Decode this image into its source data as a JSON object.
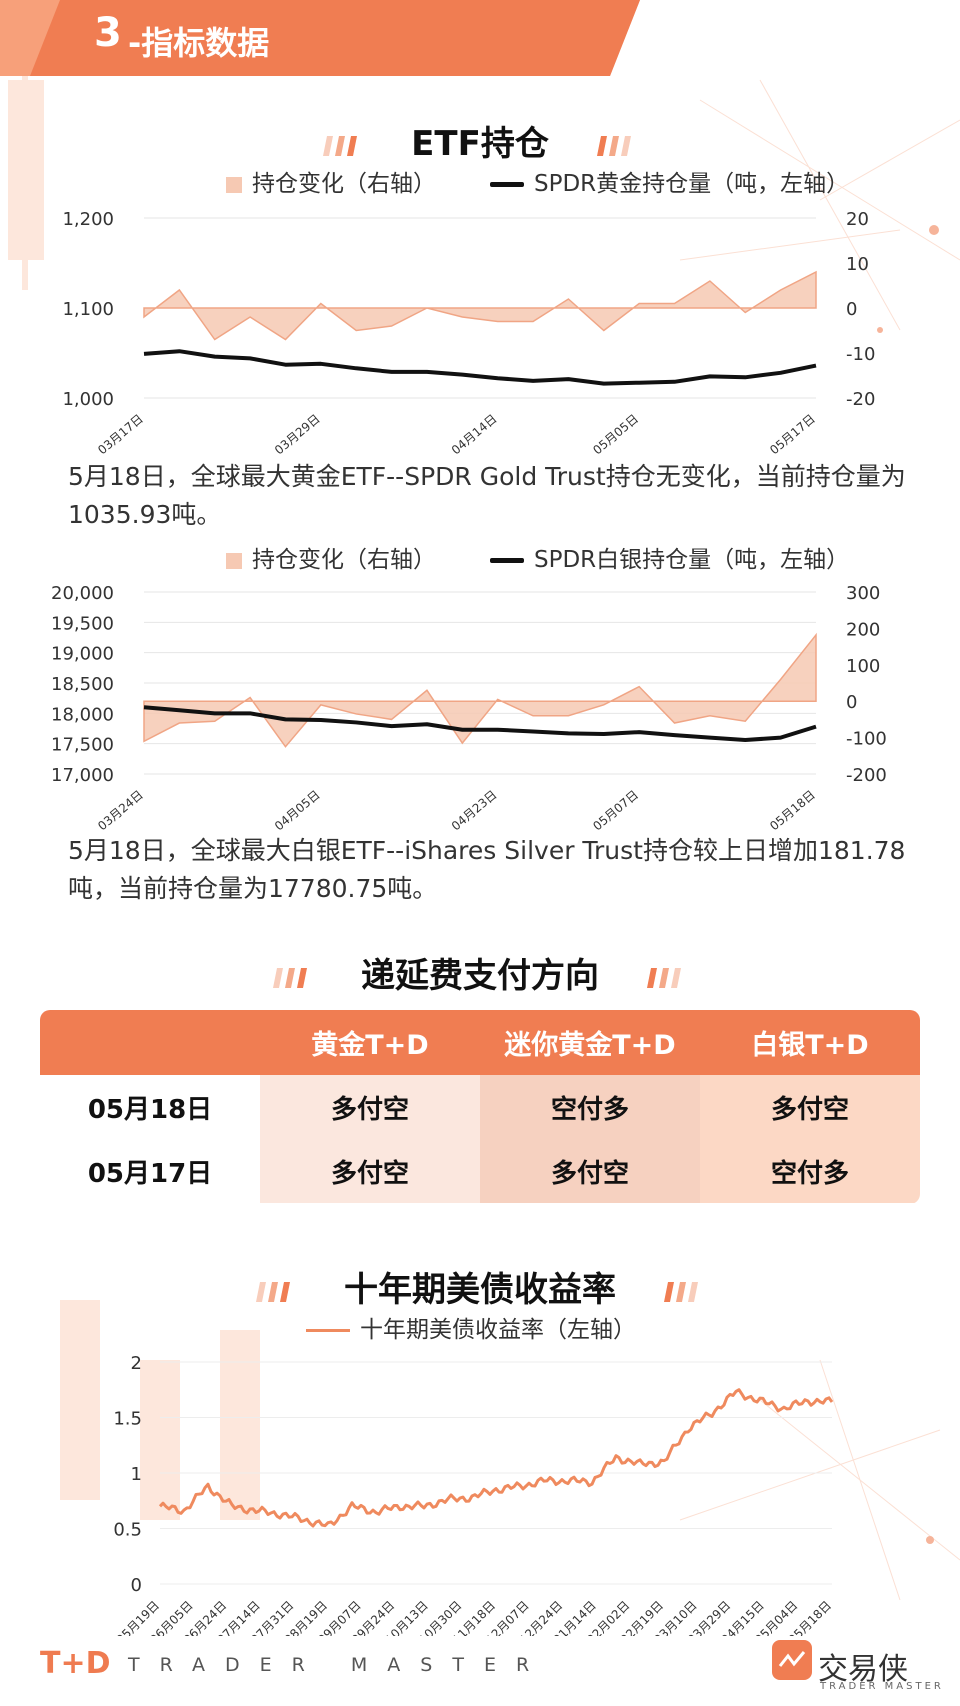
{
  "header": {
    "section_number": "3",
    "section_title": "-指标数据"
  },
  "etf": {
    "title": "ETF持仓",
    "gold_legend_area": "持仓变化（右轴）",
    "gold_legend_line": "SPDR黄金持仓量（吨，左轴）",
    "gold_text": "5月18日，全球最大黄金ETF--SPDR Gold Trust持仓无变化，当前持仓量为1035.93吨。",
    "silver_legend_area": "持仓变化（右轴）",
    "silver_legend_line": "SPDR白银持仓量（吨，左轴）",
    "silver_text": "5月18日，全球最大白银ETF--iShares Silver Trust持仓较上日增加181.78吨，当前持仓量为17780.75吨。"
  },
  "deferral": {
    "title": "递延费支付方向",
    "columns": [
      "",
      "黄金T+D",
      "迷你黄金T+D",
      "白银T+D"
    ],
    "rows": [
      [
        "05月18日",
        "多付空",
        "空付多",
        "多付空"
      ],
      [
        "05月17日",
        "多付空",
        "多付空",
        "空付多"
      ]
    ]
  },
  "bond": {
    "title": "十年期美债收益率",
    "legend": "十年期美债收益率（左轴）"
  },
  "footer": {
    "logo": "T+D",
    "tagline": "TRADER MASTER",
    "brand": "交易侠",
    "brand_sub": "TRADER MASTER"
  },
  "colors": {
    "accent": "#f07d52",
    "area_fill": "#f6c9b3",
    "area_stroke": "#f0a585",
    "hold_line": "#111111",
    "bond_line": "#ef8a5e"
  },
  "chart_data": [
    {
      "type": "line",
      "name": "gold_etf",
      "x_ticks": [
        "03月17日",
        "03月29日",
        "04月14日",
        "05月05日",
        "05月17日"
      ],
      "y_left": {
        "ticks": [
          "1,000",
          "1,100",
          "1,200"
        ],
        "lim": [
          1000,
          1200
        ]
      },
      "y_right": {
        "ticks": [
          "-20",
          "-10",
          "0",
          "10",
          "20"
        ],
        "lim": [
          -20,
          20
        ]
      },
      "series": [
        {
          "name": "持仓变化（右轴）",
          "kind": "area",
          "axis": "right",
          "values": [
            -2,
            4,
            -7,
            -2,
            -7,
            1,
            -5,
            -4,
            0,
            -2,
            -3,
            -3,
            2,
            -5,
            1,
            1,
            6,
            -1,
            4,
            8
          ]
        },
        {
          "name": "SPDR黄金持仓量（吨，左轴）",
          "kind": "line",
          "axis": "left",
          "values": [
            1049,
            1052,
            1046,
            1044,
            1037,
            1038,
            1033,
            1029,
            1029,
            1026,
            1022,
            1019,
            1021,
            1016,
            1017,
            1018,
            1024,
            1023,
            1028,
            1036
          ]
        }
      ]
    },
    {
      "type": "line",
      "name": "silver_etf",
      "x_ticks": [
        "03月24日",
        "04月05日",
        "04月23日",
        "05月07日",
        "05月18日"
      ],
      "y_left": {
        "ticks": [
          "17,000",
          "17,500",
          "18,000",
          "18,500",
          "19,000",
          "19,500",
          "20,000"
        ],
        "lim": [
          17000,
          20000
        ]
      },
      "y_right": {
        "ticks": [
          "-200",
          "-100",
          "0",
          "100",
          "200",
          "300"
        ],
        "lim": [
          -200,
          300
        ]
      },
      "series": [
        {
          "name": "持仓变化（右轴）",
          "kind": "area",
          "axis": "right",
          "values": [
            -110,
            -60,
            -55,
            10,
            -125,
            -10,
            -35,
            -50,
            30,
            -115,
            5,
            -40,
            -40,
            -10,
            40,
            -60,
            -40,
            -55,
            60,
            182
          ]
        },
        {
          "name": "SPDR白银持仓量（吨，左轴）",
          "kind": "line",
          "axis": "left",
          "values": [
            18100,
            18050,
            18000,
            18000,
            17900,
            17890,
            17850,
            17790,
            17820,
            17730,
            17730,
            17700,
            17670,
            17660,
            17690,
            17640,
            17600,
            17560,
            17600,
            17781
          ]
        }
      ]
    },
    {
      "type": "line",
      "name": "us10y",
      "x_ticks": [
        "05月19日",
        "06月05日",
        "06月24日",
        "07月14日",
        "07月31日",
        "08月19日",
        "09月07日",
        "09月24日",
        "10月13日",
        "10月30日",
        "11月18日",
        "12月07日",
        "12月24日",
        "01月14日",
        "02月02日",
        "02月19日",
        "03月10日",
        "03月29日",
        "04月15日",
        "05月04日",
        "05月18日"
      ],
      "y": {
        "ticks": [
          "0",
          "0.5",
          "1",
          "1.5",
          "2"
        ],
        "lim": [
          0,
          2
        ]
      },
      "series": [
        {
          "name": "十年期美债收益率（左轴）",
          "values": [
            0.7,
            0.66,
            0.88,
            0.7,
            0.66,
            0.63,
            0.58,
            0.52,
            0.7,
            0.65,
            0.7,
            0.7,
            0.76,
            0.78,
            0.85,
            0.88,
            0.93,
            0.93,
            0.92,
            1.14,
            1.08,
            1.1,
            1.4,
            1.54,
            1.73,
            1.65,
            1.58,
            1.65,
            1.64
          ]
        }
      ]
    }
  ]
}
